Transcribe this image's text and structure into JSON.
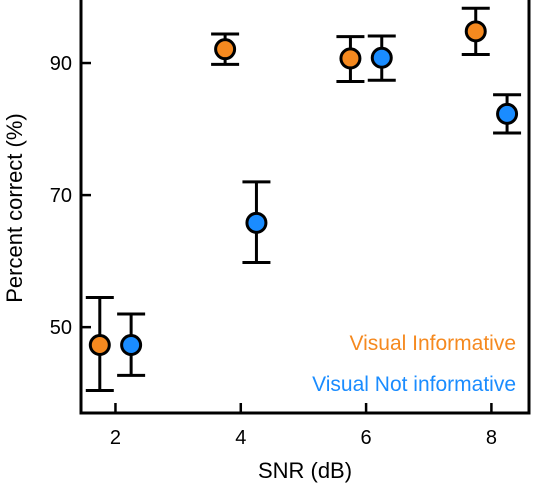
{
  "chart_data": {
    "type": "scatter",
    "title": "",
    "xlabel": "SNR (dB)",
    "ylabel": "Percent correct (%)",
    "xlim": [
      1.45,
      8.6
    ],
    "ylim": [
      37,
      100
    ],
    "xticks": [
      2,
      4,
      6,
      8
    ],
    "yticks": [
      50,
      70,
      90
    ],
    "x_tick_labels": [
      "2",
      "4",
      "6",
      "8"
    ],
    "y_tick_labels": [
      "50",
      "70",
      "90"
    ],
    "grid": false,
    "legend_position": "bottom-right",
    "series": [
      {
        "name": "Visual Informative",
        "color": "#F5891F",
        "points": [
          {
            "x": 1.75,
            "y": 47.3,
            "err_low": 40.4,
            "err_high": 54.5
          },
          {
            "x": 3.75,
            "y": 92.1,
            "err_low": 89.8,
            "err_high": 94.4
          },
          {
            "x": 5.75,
            "y": 90.7,
            "err_low": 87.2,
            "err_high": 94.0
          },
          {
            "x": 7.75,
            "y": 94.8,
            "err_low": 91.3,
            "err_high": 98.3
          }
        ]
      },
      {
        "name": "Visual Not informative",
        "color": "#1A8CFF",
        "points": [
          {
            "x": 2.25,
            "y": 47.3,
            "err_low": 42.7,
            "err_high": 52.0
          },
          {
            "x": 4.25,
            "y": 65.8,
            "err_low": 59.8,
            "err_high": 72.0
          },
          {
            "x": 6.25,
            "y": 90.8,
            "err_low": 87.4,
            "err_high": 94.1
          },
          {
            "x": 8.25,
            "y": 82.3,
            "err_low": 79.4,
            "err_high": 85.2
          }
        ]
      }
    ]
  }
}
